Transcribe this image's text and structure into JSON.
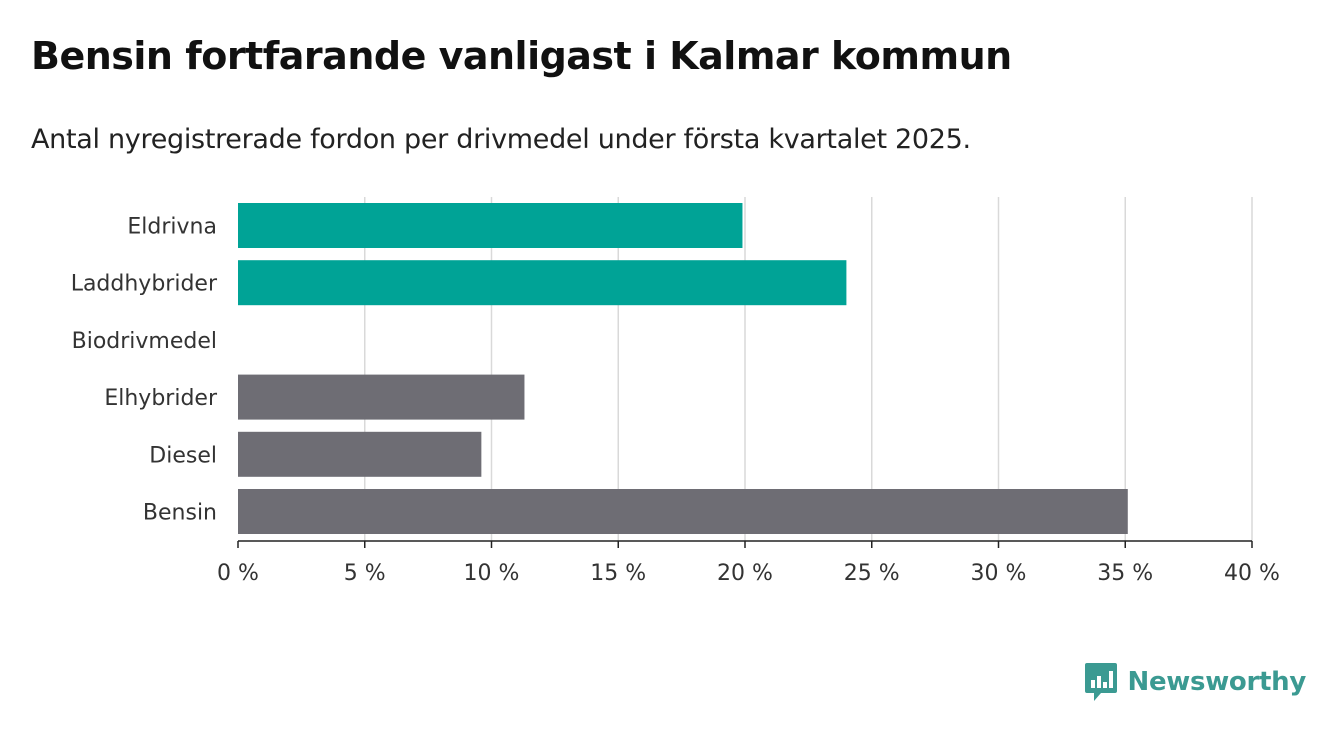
{
  "title": "Bensin fortfarande vanligast i Kalmar kommun",
  "subtitle": "Antal nyregistrerade fordon per drivmedel under första kvartalet 2025.",
  "brand": {
    "name": "Newsworthy",
    "color": "#3b9a92",
    "icon": "bar-chart-speech-bubble-icon"
  },
  "chart_data": {
    "type": "bar",
    "orientation": "horizontal",
    "categories": [
      "Eldrivna",
      "Laddhybrider",
      "Biodrivmedel",
      "Elhybrider",
      "Diesel",
      "Bensin"
    ],
    "values": [
      19.9,
      24.0,
      0,
      11.3,
      9.6,
      35.1
    ],
    "bar_colors": [
      "#00a396",
      "#00a396",
      "#00a396",
      "#6e6d74",
      "#6e6d74",
      "#6e6d74"
    ],
    "xlim": [
      0,
      40
    ],
    "ticks": [
      0,
      5,
      10,
      15,
      20,
      25,
      30,
      35,
      40
    ],
    "tick_labels": [
      "0 %",
      "5 %",
      "10 %",
      "15 %",
      "20 %",
      "25 %",
      "30 %",
      "35 %",
      "40 %"
    ],
    "grid": true,
    "xlabel": "",
    "ylabel": ""
  }
}
